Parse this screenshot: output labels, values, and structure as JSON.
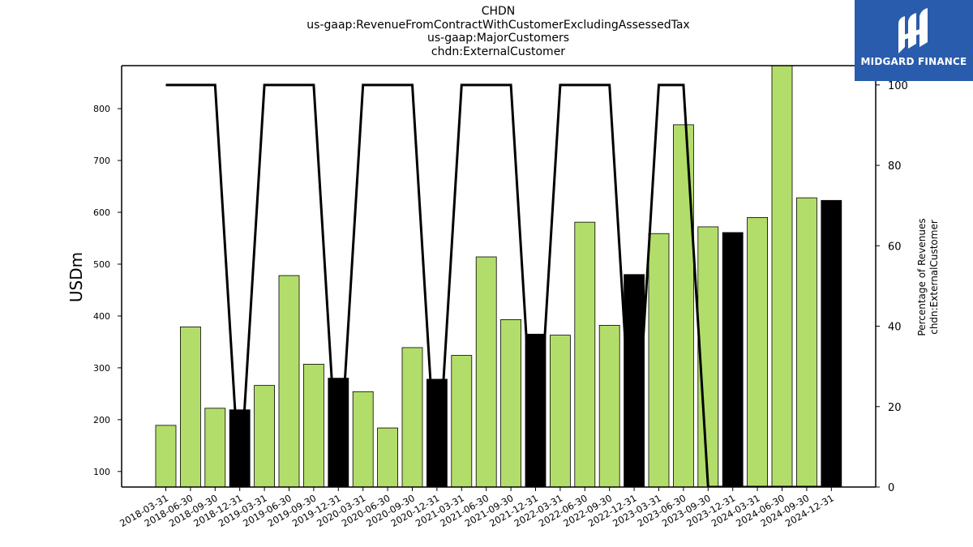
{
  "title_lines": [
    "CHDN",
    "us-gaap:RevenueFromContractWithCustomerExcludingAssessedTax",
    "us-gaap:MajorCustomers",
    "chdn:ExternalCustomer"
  ],
  "logo": {
    "text": "MIDGARD FINANCE",
    "bg_color": "#2a5cad"
  },
  "chart_data": {
    "type": "bar",
    "ylabel": "USDm",
    "y2label_lines": [
      "Percentage of Revenues",
      "chdn:ExternalCustomer"
    ],
    "categories": [
      "2018-03-31",
      "2018-06-30",
      "2018-09-30",
      "2018-12-31",
      "2019-03-31",
      "2019-06-30",
      "2019-09-30",
      "2019-12-31",
      "2020-03-31",
      "2020-06-30",
      "2020-09-30",
      "2020-12-31",
      "2021-03-31",
      "2021-06-30",
      "2021-09-30",
      "2021-12-31",
      "2022-03-31",
      "2022-06-30",
      "2022-09-30",
      "2022-12-31",
      "2023-03-31",
      "2023-06-30",
      "2023-09-30",
      "2023-12-31",
      "2024-03-31",
      "2024-06-30",
      "2024-09-30",
      "2024-12-31"
    ],
    "values": [
      189,
      379,
      222,
      219,
      266,
      478,
      307,
      280,
      254,
      184,
      339,
      278,
      324,
      514,
      393,
      365,
      363,
      581,
      382,
      480,
      559,
      769,
      572,
      561,
      590,
      890,
      628,
      623
    ],
    "bar_colors": [
      "#b3dd6a",
      "#b3dd6a",
      "#b3dd6a",
      "#000000",
      "#b3dd6a",
      "#b3dd6a",
      "#b3dd6a",
      "#000000",
      "#b3dd6a",
      "#b3dd6a",
      "#b3dd6a",
      "#000000",
      "#b3dd6a",
      "#b3dd6a",
      "#b3dd6a",
      "#000000",
      "#b3dd6a",
      "#b3dd6a",
      "#b3dd6a",
      "#000000",
      "#b3dd6a",
      "#b3dd6a",
      "#b3dd6a",
      "#000000",
      "#b3dd6a",
      "#b3dd6a",
      "#b3dd6a",
      "#000000"
    ],
    "line_values": [
      100,
      100,
      100,
      0,
      100,
      100,
      100,
      0,
      100,
      100,
      100,
      0,
      100,
      100,
      100,
      0,
      100,
      100,
      100,
      0,
      100,
      100,
      0,
      0,
      0,
      0,
      0,
      0
    ],
    "line_color": "#000000",
    "ylim": [
      70,
      883
    ],
    "y_ticks": [
      100,
      200,
      300,
      400,
      500,
      600,
      700,
      800
    ],
    "y2lim": [
      0,
      104.8
    ],
    "y2_ticks": [
      0,
      20,
      40,
      60,
      80,
      100
    ],
    "grid": false
  }
}
